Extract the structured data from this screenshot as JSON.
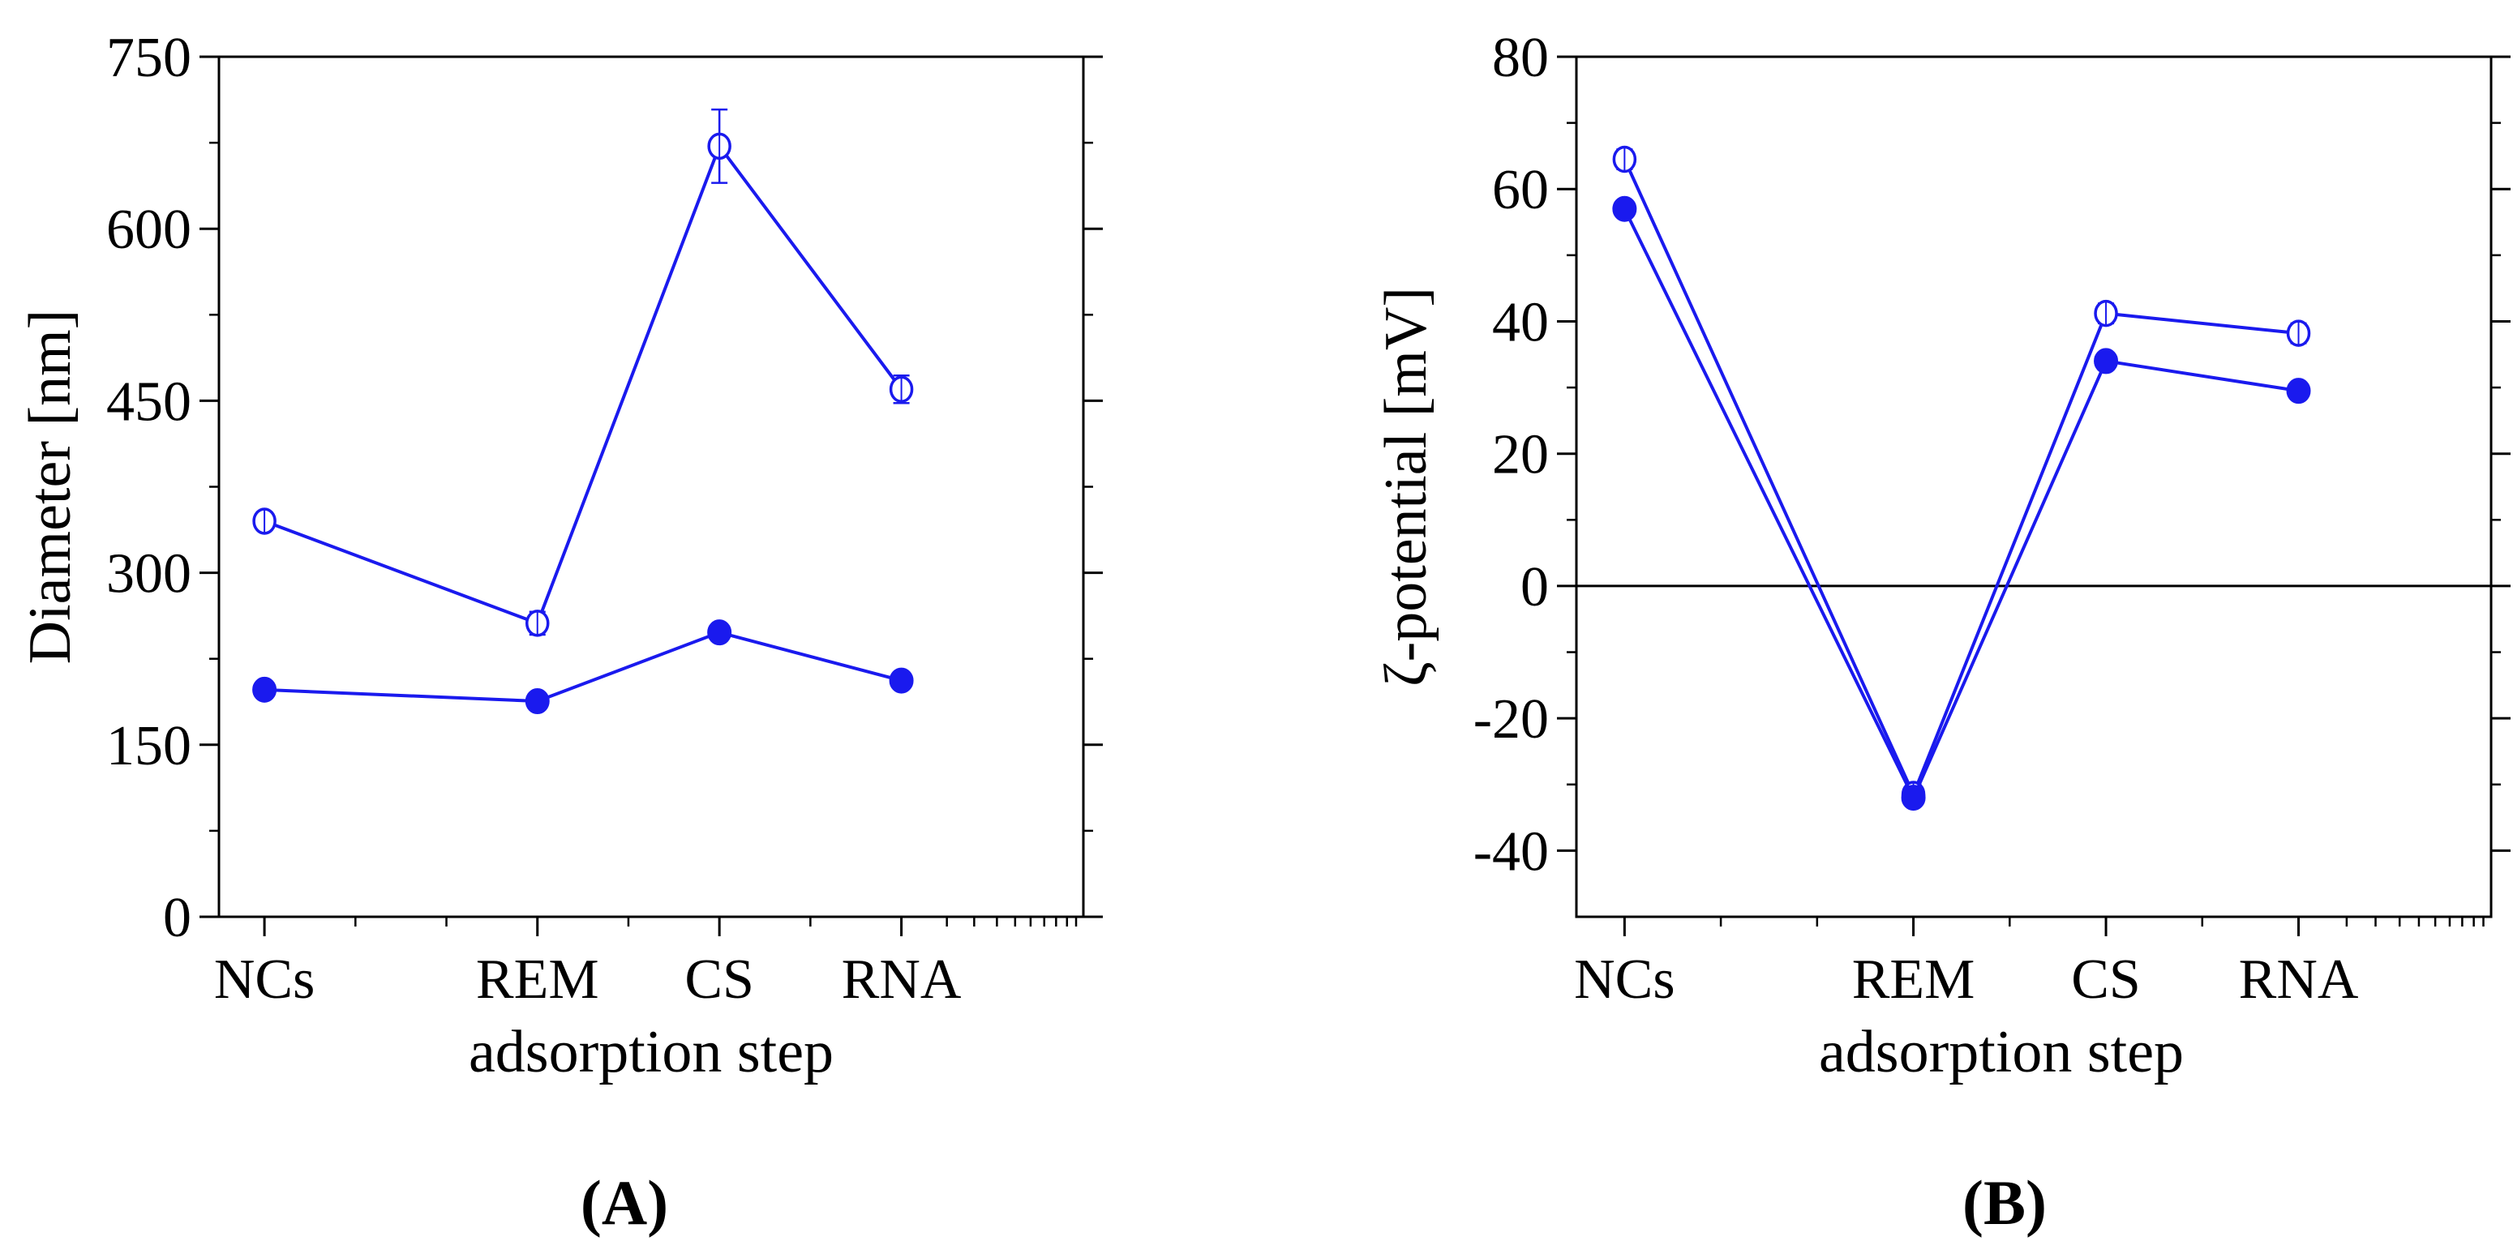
{
  "series_color": "#1a1aee",
  "chart_data": [
    {
      "panel": "A",
      "panel_label": "(A)",
      "type": "line",
      "xlabel": "adsorption step",
      "ylabel": "Diameter [nm]",
      "categories": [
        "NCs",
        "REM",
        "CS",
        "RNA"
      ],
      "x_positions": [
        1,
        4,
        6,
        8
      ],
      "xlim": [
        0.5,
        10
      ],
      "ylim": [
        0,
        750
      ],
      "yticks": [
        0,
        150,
        300,
        450,
        600,
        750
      ],
      "ytick_labels": [
        "0",
        "150",
        "300",
        "450",
        "600",
        "750"
      ],
      "series": [
        {
          "name": "open",
          "marker": "open-circle",
          "values": [
            345,
            256,
            672,
            460
          ],
          "errors": [
            8,
            10,
            32,
            12
          ]
        },
        {
          "name": "filled",
          "marker": "filled-circle",
          "values": [
            198,
            188,
            248,
            206
          ],
          "errors": [
            4,
            4,
            5,
            4
          ]
        }
      ]
    },
    {
      "panel": "B",
      "panel_label": "(B)",
      "type": "line",
      "xlabel": "adsorption step",
      "ylabel": "ζ-potential [mV]",
      "categories": [
        "NCs",
        "REM",
        "CS",
        "RNA"
      ],
      "x_positions": [
        1,
        4,
        6,
        8
      ],
      "xlim": [
        0.5,
        10
      ],
      "ylim": [
        -50,
        80
      ],
      "yticks": [
        -40,
        -20,
        0,
        20,
        40,
        60,
        80
      ],
      "ytick_labels": [
        "-40",
        "-20",
        "0",
        "20",
        "40",
        "60",
        "80"
      ],
      "zero_line": true,
      "series": [
        {
          "name": "open",
          "marker": "open-circle",
          "values": [
            64.5,
            -31.5,
            41.2,
            38.2
          ],
          "errors": [
            1.5,
            1.5,
            1.5,
            1.5
          ]
        },
        {
          "name": "filled",
          "marker": "filled-circle",
          "values": [
            57,
            -32,
            34,
            29.5
          ],
          "errors": [
            1,
            1,
            1,
            1
          ]
        }
      ]
    }
  ]
}
